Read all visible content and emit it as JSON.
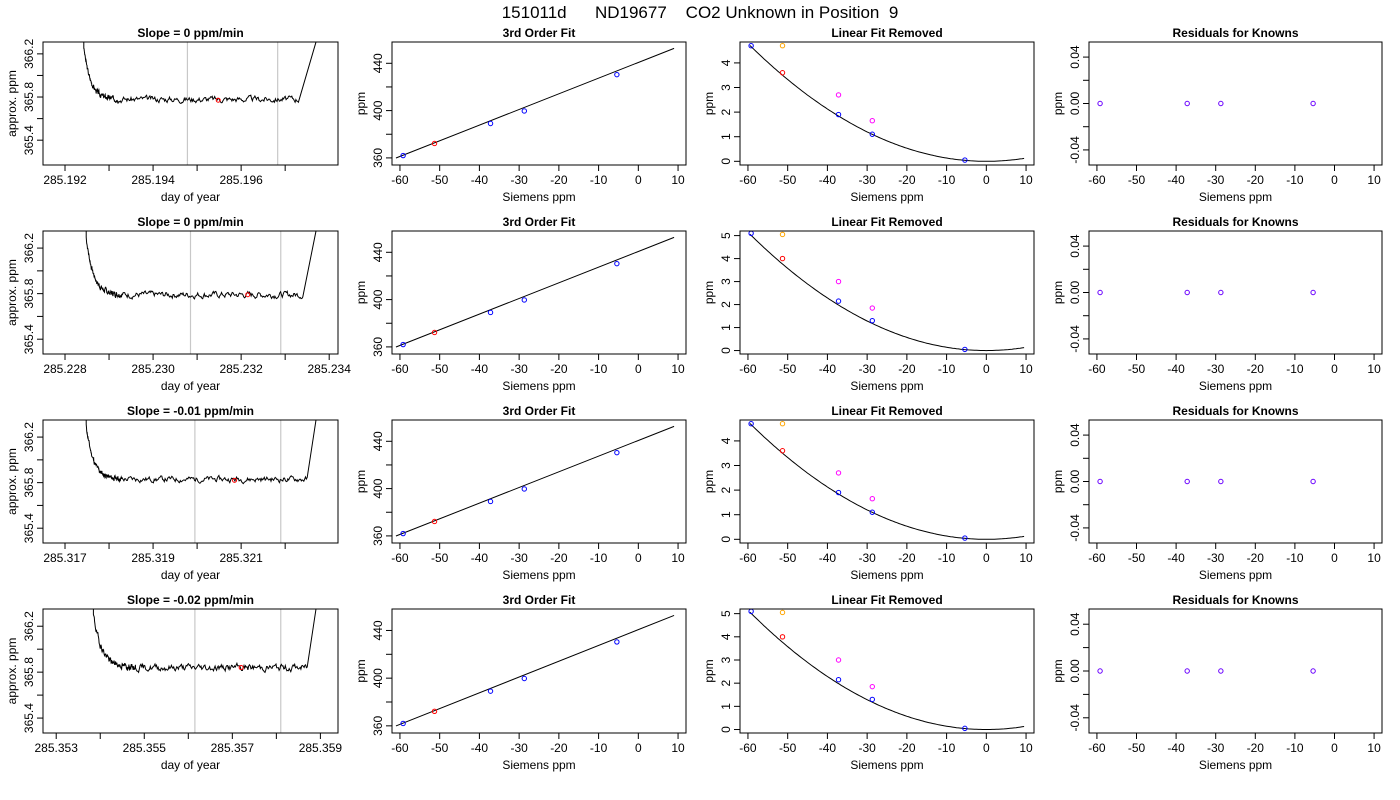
{
  "page_title": "151011d      ND19677    CO2 Unknown in Position  9",
  "colors": {
    "line": "#000000",
    "vline": "#c8c8c8",
    "point_blue": "#0000ff",
    "point_red": "#ff0000",
    "point_orange": "#ffa500",
    "point_magenta": "#ff00ff",
    "point_purple": "#6a00ff"
  },
  "chart_data": [
    {
      "type": "line",
      "panel": "trace",
      "row": 1,
      "title": "Slope =  0  ppm/min",
      "xlabel": "day of year",
      "ylabel": "approx. ppm",
      "xlim": [
        285.1915,
        285.1982
      ],
      "ylim": [
        365.17,
        366.31
      ],
      "xticks": [
        "285.192",
        "285.194",
        "285.196"
      ],
      "yticks": [
        "365.4",
        "365.8",
        "366.2"
      ],
      "vlines": [
        285.19478,
        285.19683
      ],
      "marker": {
        "x": 285.19548,
        "y": 365.77
      },
      "start": 285.1932,
      "end": 285.1973,
      "rise_x": 285.1977,
      "level": 365.78,
      "amp": 0.02,
      "seed": 3
    },
    {
      "type": "scatter",
      "panel": "fit3",
      "row": 1,
      "title": "3rd Order Fit",
      "xlabel": "Siemens ppm",
      "ylabel": "ppm",
      "xlim": [
        -62,
        12
      ],
      "ylim": [
        354,
        458
      ],
      "xticks": [
        "-60",
        "-50",
        "-40",
        "-30",
        "-20",
        "-10",
        "0",
        "10"
      ],
      "yticks": [
        "360",
        "400",
        "440"
      ],
      "line": [
        [
          -61,
          359.9
        ],
        [
          9,
          452.6
        ]
      ],
      "points": [
        {
          "x": -59.2,
          "y": 362.0,
          "color": "blue"
        },
        {
          "x": -51.3,
          "y": 372.2,
          "color": "red"
        },
        {
          "x": -37.2,
          "y": 389.1,
          "color": "blue"
        },
        {
          "x": -28.7,
          "y": 399.7,
          "color": "blue"
        },
        {
          "x": -5.4,
          "y": 430.4,
          "color": "blue"
        }
      ]
    },
    {
      "type": "scatter",
      "panel": "linfit",
      "row": 1,
      "title": "Linear Fit Removed",
      "xlabel": "Siemens ppm",
      "ylabel": "ppm",
      "xlim": [
        -62,
        12
      ],
      "ylim": [
        -0.15,
        4.85
      ],
      "xticks": [
        "-60",
        "-50",
        "-40",
        "-30",
        "-20",
        "-10",
        "0",
        "10"
      ],
      "yticks": [
        "0",
        "1",
        "2",
        "3",
        "4"
      ],
      "curve_a": 0.00133,
      "curve_vertex": 1.5,
      "points": [
        {
          "x": -59.2,
          "y": 4.7,
          "color": "blue"
        },
        {
          "x": -51.3,
          "y": 4.7,
          "color": "orange"
        },
        {
          "x": -51.3,
          "y": 3.6,
          "color": "red"
        },
        {
          "x": -37.2,
          "y": 2.7,
          "color": "magenta"
        },
        {
          "x": -37.2,
          "y": 1.9,
          "color": "blue"
        },
        {
          "x": -28.7,
          "y": 1.65,
          "color": "magenta"
        },
        {
          "x": -28.7,
          "y": 1.1,
          "color": "blue"
        },
        {
          "x": -5.4,
          "y": 0.05,
          "color": "blue"
        }
      ]
    },
    {
      "type": "scatter",
      "panel": "resid",
      "row": 1,
      "title": "Residuals for Knowns",
      "xlabel": "Siemens ppm",
      "ylabel": "ppm",
      "xlim": [
        -62,
        12
      ],
      "ylim": [
        -0.053,
        0.053
      ],
      "xticks": [
        "-60",
        "-50",
        "-40",
        "-30",
        "-20",
        "-10",
        "0",
        "10"
      ],
      "yticks": [
        "-0.04",
        "0.00",
        "0.04"
      ],
      "points": [
        {
          "x": -59.2,
          "y": 0,
          "color": "purple"
        },
        {
          "x": -37.2,
          "y": 0,
          "color": "purple"
        },
        {
          "x": -28.7,
          "y": 0,
          "color": "purple"
        },
        {
          "x": -5.4,
          "y": 0,
          "color": "purple"
        }
      ]
    },
    {
      "type": "line",
      "panel": "trace",
      "row": 2,
      "title": "Slope =  0  ppm/min",
      "xlabel": "day of year",
      "ylabel": "approx. ppm",
      "xlim": [
        285.2275,
        285.2342
      ],
      "ylim": [
        365.27,
        366.35
      ],
      "xticks": [
        "285.228",
        "285.230",
        "285.232",
        "285.234"
      ],
      "yticks": [
        "365.4",
        "365.8",
        "366.2"
      ],
      "vlines": [
        285.23085,
        285.2329
      ],
      "marker": {
        "x": 285.23215,
        "y": 365.79
      },
      "start": 285.2293,
      "end": 285.2334,
      "rise_x": 285.2337,
      "level": 365.79,
      "amp": 0.02,
      "seed": 7
    },
    {
      "type": "scatter",
      "panel": "fit3",
      "row": 2,
      "title": "3rd Order Fit",
      "xlabel": "Siemens ppm",
      "ylabel": "ppm",
      "xlim": [
        -62,
        12
      ],
      "ylim": [
        354,
        458
      ],
      "xticks": [
        "-60",
        "-50",
        "-40",
        "-30",
        "-20",
        "-10",
        "0",
        "10"
      ],
      "yticks": [
        "360",
        "400",
        "440"
      ],
      "line": [
        [
          -61,
          359.9
        ],
        [
          9,
          452.6
        ]
      ],
      "points": [
        {
          "x": -59.2,
          "y": 362.0,
          "color": "blue"
        },
        {
          "x": -51.3,
          "y": 372.2,
          "color": "red"
        },
        {
          "x": -37.2,
          "y": 389.1,
          "color": "blue"
        },
        {
          "x": -28.7,
          "y": 399.7,
          "color": "blue"
        },
        {
          "x": -5.4,
          "y": 430.4,
          "color": "blue"
        }
      ]
    },
    {
      "type": "scatter",
      "panel": "linfit",
      "row": 2,
      "title": "Linear Fit Removed",
      "xlabel": "Siemens ppm",
      "ylabel": "ppm",
      "xlim": [
        -62,
        12
      ],
      "ylim": [
        -0.15,
        5.2
      ],
      "xticks": [
        "-60",
        "-50",
        "-40",
        "-30",
        "-20",
        "-10",
        "0",
        "10"
      ],
      "yticks": [
        "0",
        "1",
        "2",
        "3",
        "4",
        "5"
      ],
      "curve_a": 0.00143,
      "curve_vertex": 1.5,
      "points": [
        {
          "x": -59.2,
          "y": 5.1,
          "color": "blue"
        },
        {
          "x": -51.3,
          "y": 5.05,
          "color": "orange"
        },
        {
          "x": -51.3,
          "y": 4.0,
          "color": "red"
        },
        {
          "x": -37.2,
          "y": 3.0,
          "color": "magenta"
        },
        {
          "x": -37.2,
          "y": 2.15,
          "color": "blue"
        },
        {
          "x": -28.7,
          "y": 1.85,
          "color": "magenta"
        },
        {
          "x": -28.7,
          "y": 1.3,
          "color": "blue"
        },
        {
          "x": -5.4,
          "y": 0.05,
          "color": "blue"
        }
      ]
    },
    {
      "type": "scatter",
      "panel": "resid",
      "row": 2,
      "title": "Residuals for Knowns",
      "xlabel": "Siemens ppm",
      "ylabel": "ppm",
      "xlim": [
        -62,
        12
      ],
      "ylim": [
        -0.053,
        0.053
      ],
      "xticks": [
        "-60",
        "-50",
        "-40",
        "-30",
        "-20",
        "-10",
        "0",
        "10"
      ],
      "yticks": [
        "-0.04",
        "0.00",
        "0.04"
      ],
      "points": [
        {
          "x": -59.2,
          "y": 0,
          "color": "purple"
        },
        {
          "x": -37.2,
          "y": 0,
          "color": "purple"
        },
        {
          "x": -28.7,
          "y": 0,
          "color": "purple"
        },
        {
          "x": -5.4,
          "y": 0,
          "color": "purple"
        }
      ]
    },
    {
      "type": "line",
      "panel": "trace",
      "row": 3,
      "title": "Slope =  -0.01  ppm/min",
      "xlabel": "day of year",
      "ylabel": "approx. ppm",
      "xlim": [
        285.3165,
        285.3232
      ],
      "ylim": [
        365.27,
        366.35
      ],
      "xticks": [
        "285.317",
        "285.319",
        "285.321"
      ],
      "yticks": [
        "365.4",
        "365.8",
        "366.2"
      ],
      "vlines": [
        285.31995,
        285.3219
      ],
      "marker": {
        "x": 285.32085,
        "y": 365.82
      },
      "start": 285.3183,
      "end": 285.3225,
      "rise_x": 285.3227,
      "level": 365.83,
      "amp": 0.018,
      "seed": 11
    },
    {
      "type": "scatter",
      "panel": "fit3",
      "row": 3,
      "title": "3rd Order Fit",
      "xlabel": "Siemens ppm",
      "ylabel": "ppm",
      "xlim": [
        -62,
        12
      ],
      "ylim": [
        354,
        458
      ],
      "xticks": [
        "-60",
        "-50",
        "-40",
        "-30",
        "-20",
        "-10",
        "0",
        "10"
      ],
      "yticks": [
        "360",
        "400",
        "440"
      ],
      "line": [
        [
          -61,
          359.9
        ],
        [
          9,
          452.6
        ]
      ],
      "points": [
        {
          "x": -59.2,
          "y": 362.0,
          "color": "blue"
        },
        {
          "x": -51.3,
          "y": 372.2,
          "color": "red"
        },
        {
          "x": -37.2,
          "y": 389.1,
          "color": "blue"
        },
        {
          "x": -28.7,
          "y": 399.7,
          "color": "blue"
        },
        {
          "x": -5.4,
          "y": 430.4,
          "color": "blue"
        }
      ]
    },
    {
      "type": "scatter",
      "panel": "linfit",
      "row": 3,
      "title": "Linear Fit Removed",
      "xlabel": "Siemens ppm",
      "ylabel": "ppm",
      "xlim": [
        -62,
        12
      ],
      "ylim": [
        -0.15,
        4.85
      ],
      "xticks": [
        "-60",
        "-50",
        "-40",
        "-30",
        "-20",
        "-10",
        "0",
        "10"
      ],
      "yticks": [
        "0",
        "1",
        "2",
        "3",
        "4"
      ],
      "curve_a": 0.00133,
      "curve_vertex": 1.5,
      "points": [
        {
          "x": -59.2,
          "y": 4.7,
          "color": "blue"
        },
        {
          "x": -51.3,
          "y": 4.7,
          "color": "orange"
        },
        {
          "x": -51.3,
          "y": 3.6,
          "color": "red"
        },
        {
          "x": -37.2,
          "y": 2.7,
          "color": "magenta"
        },
        {
          "x": -37.2,
          "y": 1.9,
          "color": "blue"
        },
        {
          "x": -28.7,
          "y": 1.65,
          "color": "magenta"
        },
        {
          "x": -28.7,
          "y": 1.1,
          "color": "blue"
        },
        {
          "x": -5.4,
          "y": 0.05,
          "color": "blue"
        }
      ]
    },
    {
      "type": "scatter",
      "panel": "resid",
      "row": 3,
      "title": "Residuals for Knowns",
      "xlabel": "Siemens ppm",
      "ylabel": "ppm",
      "xlim": [
        -62,
        12
      ],
      "ylim": [
        -0.053,
        0.053
      ],
      "xticks": [
        "-60",
        "-50",
        "-40",
        "-30",
        "-20",
        "-10",
        "0",
        "10"
      ],
      "yticks": [
        "-0.04",
        "0.00",
        "0.04"
      ],
      "points": [
        {
          "x": -59.2,
          "y": 0,
          "color": "purple"
        },
        {
          "x": -37.2,
          "y": 0,
          "color": "purple"
        },
        {
          "x": -28.7,
          "y": 0,
          "color": "purple"
        },
        {
          "x": -5.4,
          "y": 0,
          "color": "purple"
        }
      ]
    },
    {
      "type": "line",
      "panel": "trace",
      "row": 4,
      "title": "Slope =  -0.02  ppm/min",
      "xlabel": "day of year",
      "ylabel": "approx. ppm",
      "xlim": [
        285.3527,
        285.3594
      ],
      "ylim": [
        365.27,
        366.35
      ],
      "xticks": [
        "285.353",
        "285.355",
        "285.357",
        "285.359"
      ],
      "yticks": [
        "365.4",
        "365.8",
        "366.2"
      ],
      "vlines": [
        285.35615,
        285.3581
      ],
      "marker": {
        "x": 285.3572,
        "y": 365.84
      },
      "start": 285.3548,
      "end": 285.3587,
      "rise_x": 285.3589,
      "level": 365.84,
      "amp": 0.022,
      "seed": 19
    },
    {
      "type": "scatter",
      "panel": "fit3",
      "row": 4,
      "title": "3rd Order Fit",
      "xlabel": "Siemens ppm",
      "ylabel": "ppm",
      "xlim": [
        -62,
        12
      ],
      "ylim": [
        354,
        458
      ],
      "xticks": [
        "-60",
        "-50",
        "-40",
        "-30",
        "-20",
        "-10",
        "0",
        "10"
      ],
      "yticks": [
        "360",
        "400",
        "440"
      ],
      "line": [
        [
          -61,
          359.9
        ],
        [
          9,
          452.6
        ]
      ],
      "points": [
        {
          "x": -59.2,
          "y": 362.0,
          "color": "blue"
        },
        {
          "x": -51.3,
          "y": 372.2,
          "color": "red"
        },
        {
          "x": -37.2,
          "y": 389.1,
          "color": "blue"
        },
        {
          "x": -28.7,
          "y": 399.7,
          "color": "blue"
        },
        {
          "x": -5.4,
          "y": 430.4,
          "color": "blue"
        }
      ]
    },
    {
      "type": "scatter",
      "panel": "linfit",
      "row": 4,
      "title": "Linear Fit Removed",
      "xlabel": "Siemens ppm",
      "ylabel": "ppm",
      "xlim": [
        -62,
        12
      ],
      "ylim": [
        -0.15,
        5.2
      ],
      "xticks": [
        "-60",
        "-50",
        "-40",
        "-30",
        "-20",
        "-10",
        "0",
        "10"
      ],
      "yticks": [
        "0",
        "1",
        "2",
        "3",
        "4",
        "5"
      ],
      "curve_a": 0.00143,
      "curve_vertex": 1.5,
      "points": [
        {
          "x": -59.2,
          "y": 5.1,
          "color": "blue"
        },
        {
          "x": -51.3,
          "y": 5.05,
          "color": "orange"
        },
        {
          "x": -51.3,
          "y": 4.0,
          "color": "red"
        },
        {
          "x": -37.2,
          "y": 3.0,
          "color": "magenta"
        },
        {
          "x": -37.2,
          "y": 2.15,
          "color": "blue"
        },
        {
          "x": -28.7,
          "y": 1.85,
          "color": "magenta"
        },
        {
          "x": -28.7,
          "y": 1.3,
          "color": "blue"
        },
        {
          "x": -5.4,
          "y": 0.05,
          "color": "blue"
        }
      ]
    },
    {
      "type": "scatter",
      "panel": "resid",
      "row": 4,
      "title": "Residuals for Knowns",
      "xlabel": "Siemens ppm",
      "ylabel": "ppm",
      "xlim": [
        -62,
        12
      ],
      "ylim": [
        -0.053,
        0.053
      ],
      "xticks": [
        "-60",
        "-50",
        "-40",
        "-30",
        "-20",
        "-10",
        "0",
        "10"
      ],
      "yticks": [
        "-0.04",
        "0.00",
        "0.04"
      ],
      "points": [
        {
          "x": -59.2,
          "y": 0,
          "color": "purple"
        },
        {
          "x": -37.2,
          "y": 0,
          "color": "purple"
        },
        {
          "x": -28.7,
          "y": 0,
          "color": "purple"
        },
        {
          "x": -5.4,
          "y": 0,
          "color": "purple"
        }
      ]
    }
  ]
}
